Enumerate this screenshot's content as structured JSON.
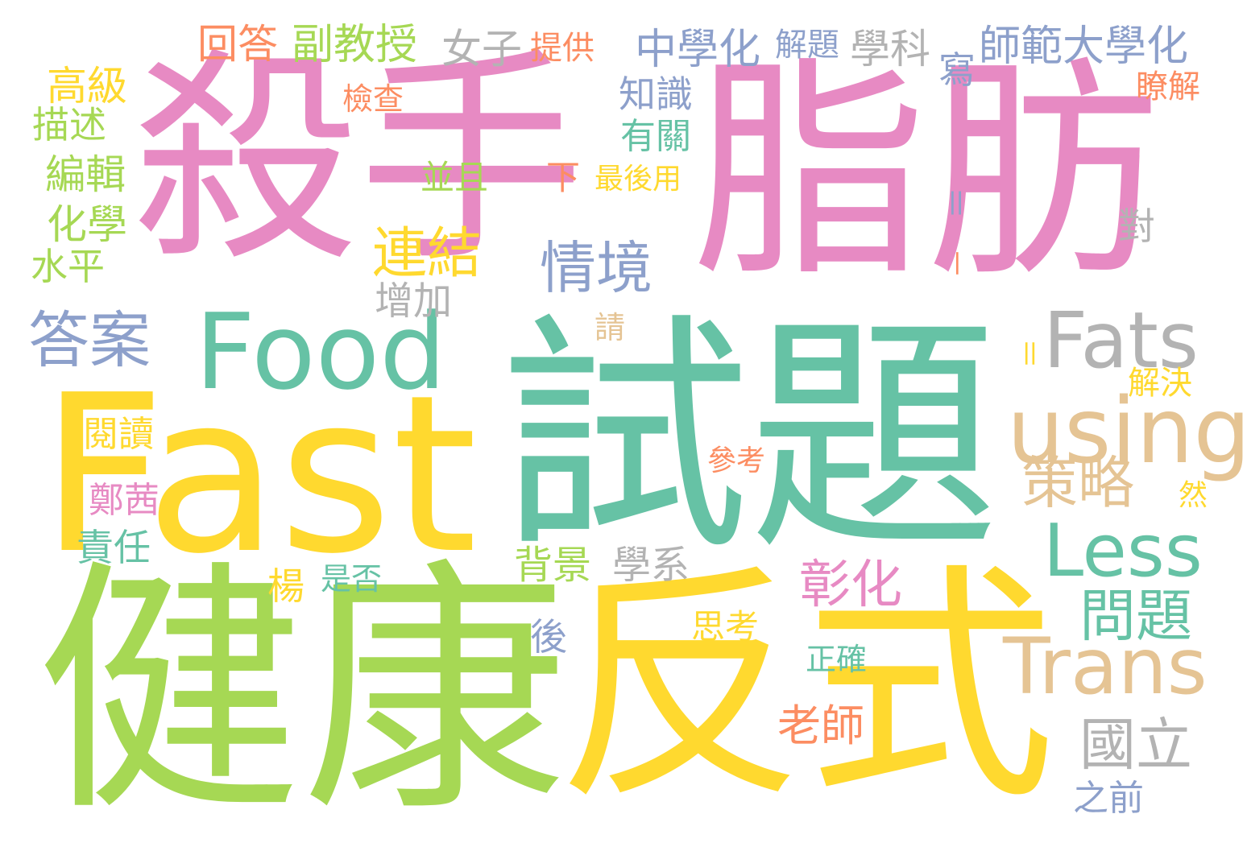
{
  "colors": {
    "pink": "#e78ac3",
    "teal": "#66c2a5",
    "green": "#a6d854",
    "yellow": "#ffd92f",
    "orange": "#fc8d62",
    "blue": "#8da0cb",
    "tan": "#e5c494",
    "gray": "#b3b3b3"
  },
  "words": [
    "殺手",
    "脂肪",
    "Fast",
    "試題",
    "健康",
    "反式",
    "Food",
    "答案",
    "Fats",
    "using",
    "Less",
    "Trans",
    "策略",
    "問題",
    "彰化",
    "國立",
    "情境",
    "連結",
    "中學化",
    "師範大學化",
    "副教授",
    "回答",
    "女子",
    "提供",
    "解題",
    "學科",
    "寫",
    "知識",
    "有關",
    "並且",
    "下",
    "最後用",
    "高級",
    "描述",
    "編輯",
    "化學",
    "水平",
    "檢查",
    "瞭解",
    "對",
    "增加",
    "請",
    "解決",
    "閱讀",
    "參考",
    "然",
    "鄭茜",
    "責任",
    "背景",
    "學系",
    "楊",
    "是否",
    "後",
    "思考",
    "正確",
    "老師",
    "之前",
    "＝",
    "＝",
    "－"
  ]
}
